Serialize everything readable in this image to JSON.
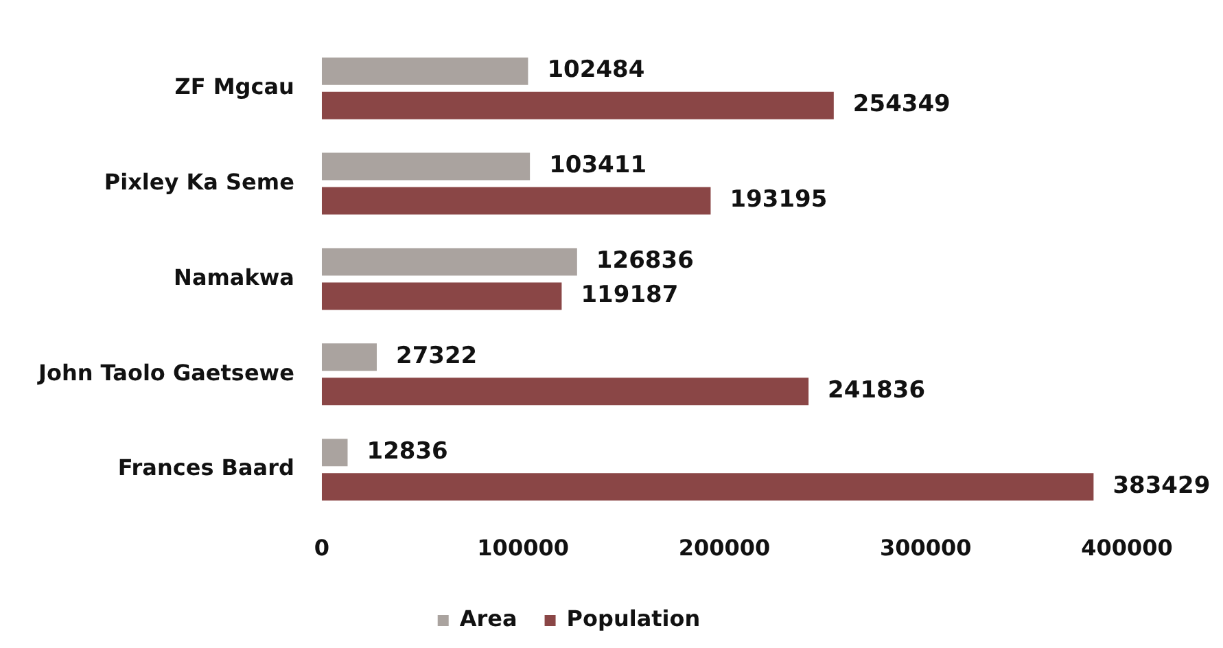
{
  "chart_data": {
    "type": "bar",
    "orientation": "horizontal",
    "categories": [
      "ZF Mgcau",
      "Pixley Ka Seme",
      "Namakwa",
      "John Taolo Gaetsewe",
      "Frances Baard"
    ],
    "series": [
      {
        "name": "Area",
        "color": "#aaa39f",
        "values": [
          102484,
          103411,
          126836,
          27322,
          12836
        ]
      },
      {
        "name": "Population",
        "color": "#8a4646",
        "values": [
          254349,
          193195,
          119187,
          241836,
          383429
        ]
      }
    ],
    "xlim": [
      0,
      400000
    ],
    "xticks": [
      0,
      100000,
      200000,
      300000,
      400000
    ],
    "grid": false,
    "legend": "bottom",
    "data_labels": true
  }
}
